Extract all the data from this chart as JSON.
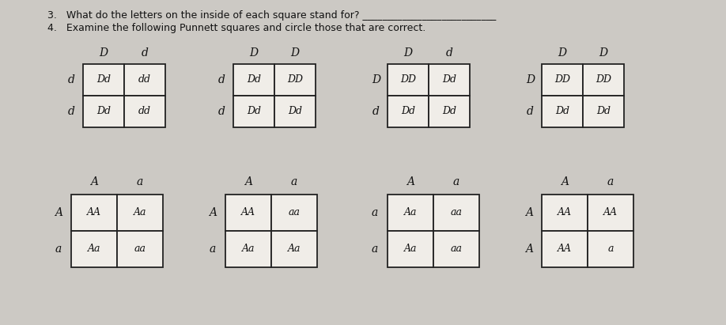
{
  "bg_color": "#ccc9c4",
  "paper_color": "#e8e5df",
  "text_color": "#111111",
  "grid_color": "#222222",
  "cell_color": "#f0ede8",
  "q3": "3.   What do the letters on the inside of each square stand for? ___________________________",
  "q4": "4.   Examine the following Punnett squares and circle those that are correct.",
  "punnetts_row1": [
    {
      "col_headers": [
        "D",
        "d"
      ],
      "row_headers": [
        "d",
        "d"
      ],
      "cells": [
        [
          "Dd",
          "dd"
        ],
        [
          "Dd",
          "dd"
        ]
      ]
    },
    {
      "col_headers": [
        "D",
        "D"
      ],
      "row_headers": [
        "d",
        "d"
      ],
      "cells": [
        [
          "Dd",
          "DD"
        ],
        [
          "Dd",
          "Dd"
        ]
      ]
    },
    {
      "col_headers": [
        "D",
        "d"
      ],
      "row_headers": [
        "D",
        "d"
      ],
      "cells": [
        [
          "DD",
          "Dd"
        ],
        [
          "Dd",
          "Dd"
        ]
      ]
    },
    {
      "col_headers": [
        "D",
        "D"
      ],
      "row_headers": [
        "D",
        "d"
      ],
      "cells": [
        [
          "DD",
          "DD"
        ],
        [
          "Dd",
          "Dd"
        ]
      ]
    }
  ],
  "punnetts_row2": [
    {
      "col_headers": [
        "A",
        "a"
      ],
      "row_headers": [
        "A",
        "a"
      ],
      "cells": [
        [
          "AA",
          "Aa"
        ],
        [
          "Aa",
          "aa"
        ]
      ],
      "clip_bottom": true
    },
    {
      "col_headers": [
        "A",
        "a"
      ],
      "row_headers": [
        "A",
        "a"
      ],
      "cells": [
        [
          "AA",
          "aa"
        ],
        [
          "Aa",
          "Aa"
        ]
      ]
    },
    {
      "col_headers": [
        "A",
        "a"
      ],
      "row_headers": [
        "a",
        "a"
      ],
      "cells": [
        [
          "Aa",
          "aa"
        ],
        [
          "Aa",
          "aa"
        ]
      ]
    },
    {
      "col_headers": [
        "A",
        "a"
      ],
      "row_headers": [
        "A",
        "A"
      ],
      "cells": [
        [
          "AA",
          "AA"
        ],
        [
          "AA",
          "a"
        ]
      ]
    }
  ]
}
